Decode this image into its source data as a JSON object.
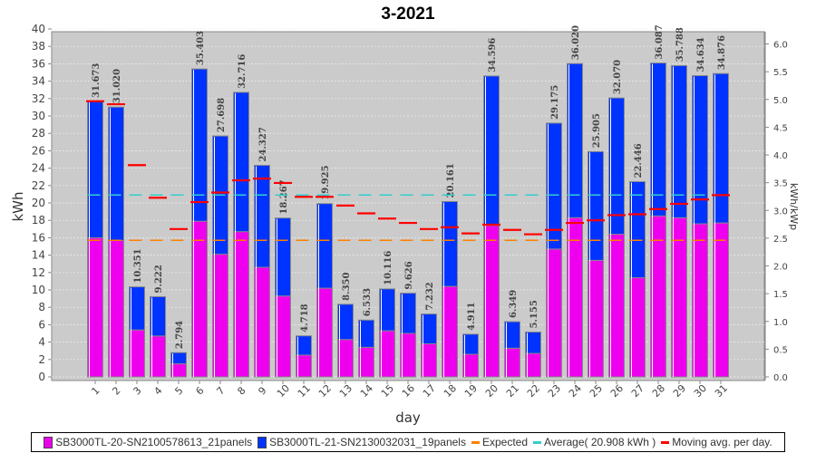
{
  "chart_data": {
    "type": "bar",
    "title": "3-2021",
    "xlabel": "day",
    "ylabel": "kWh",
    "ylabel_right": "kWh/kWp",
    "ylim": [
      0,
      40
    ],
    "yticks": [
      "0",
      "2",
      "4",
      "6",
      "8",
      "10",
      "12",
      "14",
      "16",
      "18",
      "20",
      "22",
      "24",
      "26",
      "28",
      "30",
      "32",
      "34",
      "36",
      "38",
      "40"
    ],
    "yticks_right": [
      "0.0",
      "0.5",
      "1.0",
      "1.5",
      "2.0",
      "2.5",
      "3.0",
      "3.5",
      "4.0",
      "4.5",
      "5.0",
      "5.5",
      "6.0"
    ],
    "categories": [
      "1",
      "2",
      "3",
      "4",
      "5",
      "6",
      "7",
      "8",
      "9",
      "10",
      "11",
      "12",
      "13",
      "14",
      "15",
      "16",
      "17",
      "18",
      "19",
      "20",
      "21",
      "22",
      "23",
      "24",
      "25",
      "26",
      "27",
      "28",
      "29",
      "30",
      "31"
    ],
    "totals": [
      "31.673",
      "31.020",
      "10.351",
      "9.222",
      "2.794",
      "35.403",
      "27.698",
      "32.716",
      "24.327",
      "18.267",
      "4.718",
      "19.925",
      "8.350",
      "6.533",
      "10.116",
      "9.626",
      "7.232",
      "20.161",
      "4.911",
      "34.596",
      "6.349",
      "5.155",
      "29.175",
      "36.020",
      "25.905",
      "32.070",
      "22.446",
      "36.087",
      "35.788",
      "34.634",
      "34.876"
    ],
    "series": [
      {
        "name": "SB3000TL-20-SN2100578613_21panels",
        "color": "#ee00ee",
        "values": [
          16.0,
          15.7,
          5.4,
          4.7,
          1.5,
          17.9,
          14.1,
          16.7,
          12.6,
          9.3,
          2.5,
          10.2,
          4.3,
          3.4,
          5.3,
          5.0,
          3.8,
          10.4,
          2.6,
          17.4,
          3.3,
          2.7,
          14.7,
          18.3,
          13.4,
          16.4,
          11.4,
          18.5,
          18.3,
          17.6,
          17.7
        ]
      },
      {
        "name": "SB3000TL-21-SN2130032031_19panels",
        "color": "#0033ff",
        "values": [
          15.673,
          15.32,
          4.951,
          4.522,
          1.294,
          17.503,
          13.598,
          16.016,
          11.727,
          8.967,
          2.218,
          9.725,
          4.05,
          3.133,
          4.816,
          4.626,
          3.432,
          9.761,
          2.311,
          17.196,
          3.049,
          2.455,
          14.475,
          17.72,
          12.505,
          15.67,
          11.046,
          17.587,
          17.488,
          17.034,
          17.176
        ]
      }
    ],
    "expected": {
      "name": "Expected",
      "value": 15.7,
      "color": "#ff8000"
    },
    "average": {
      "name": "Average( 20.908 kWh )",
      "value": 20.908,
      "color": "#33cccc"
    },
    "moving_avg": {
      "name": "Moving avg. per day.",
      "color": "#ff0000",
      "values": [
        31.7,
        31.35,
        24.35,
        20.6,
        17.0,
        20.1,
        21.2,
        22.6,
        22.8,
        22.3,
        20.7,
        20.7,
        19.7,
        18.8,
        18.2,
        17.7,
        17.0,
        17.2,
        16.5,
        17.5,
        16.9,
        16.4,
        16.9,
        17.7,
        18.0,
        18.6,
        18.7,
        19.3,
        19.9,
        20.4,
        20.9
      ]
    },
    "right_axis_max": 6.27,
    "grid": true,
    "legend_position": "bottom"
  }
}
